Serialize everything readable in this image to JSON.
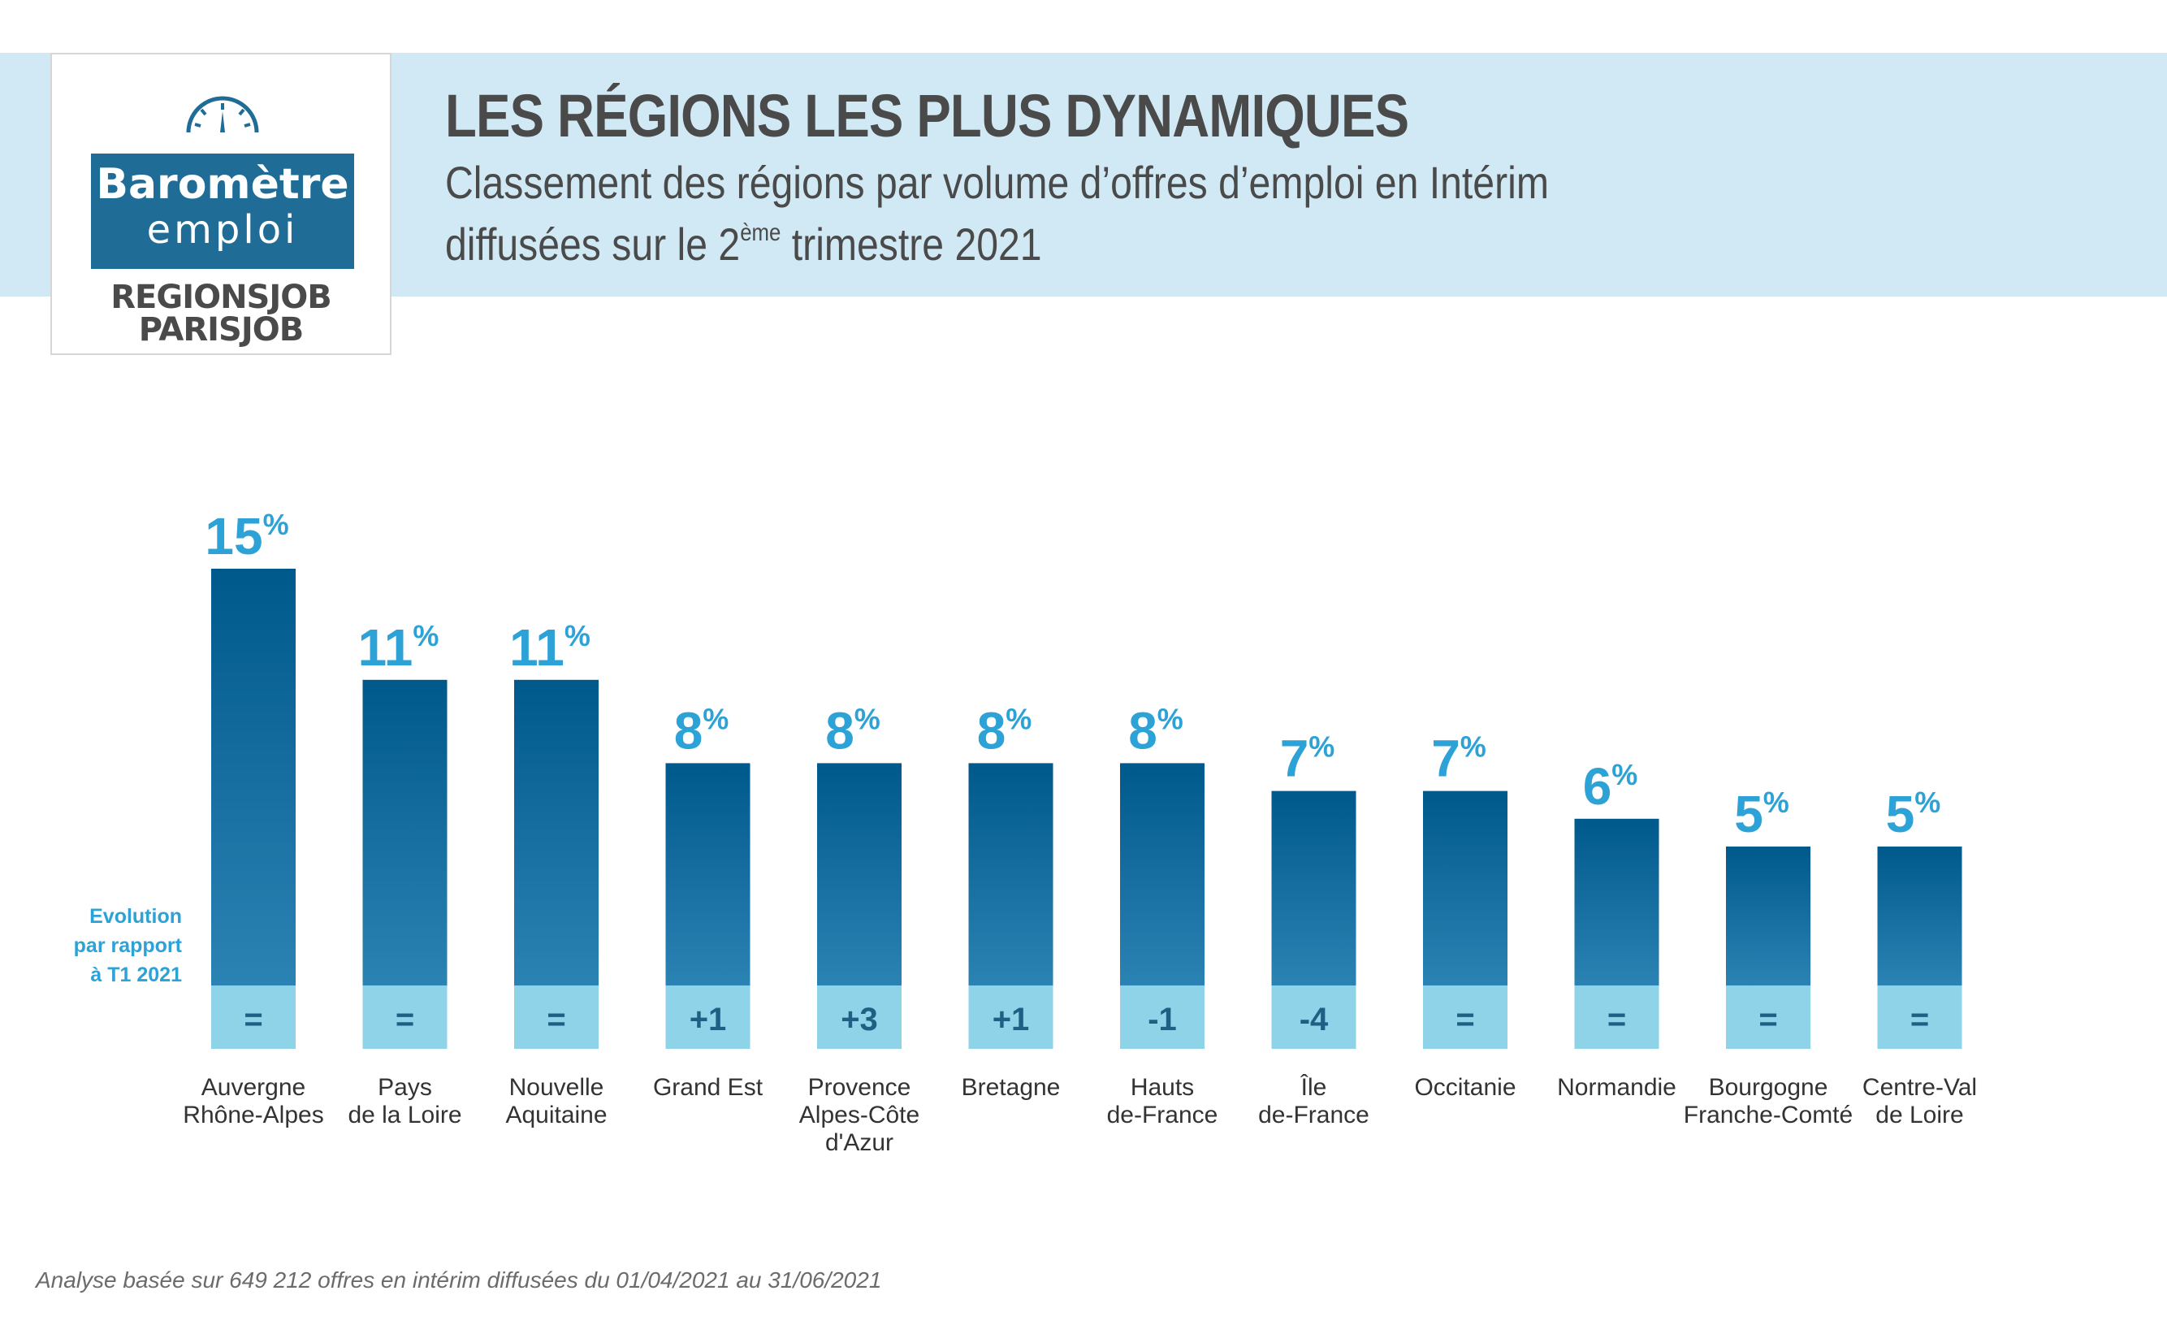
{
  "logo": {
    "line1": "Baromètre",
    "line2": "emploi",
    "brand1": "REGIONSJOB",
    "brand2": "PARISJOB"
  },
  "header": {
    "title": "LES RÉGIONS LES PLUS DYNAMIQUES",
    "subtitle_line1": "Classement des régions par volume d’offres d’emploi en Intérim",
    "subtitle_line2_pre": "diffusées sur le 2",
    "subtitle_line2_sup": "ème",
    "subtitle_line2_post": " trimestre 2021"
  },
  "evolution_label": [
    "Evolution",
    "par rapport",
    "à T1 2021"
  ],
  "footnote": "Analyse basée sur 649 212 offres en intérim diffusées du 01/04/2021 au 31/06/2021",
  "colors": {
    "bar_top": "#00598b",
    "bar_bottom": "#2b83b4",
    "evo_bg": "#8fd3e8",
    "label": "#2ca2d6",
    "banner": "#d1e9f4"
  },
  "chart_data": {
    "type": "bar",
    "title": "LES RÉGIONS LES PLUS DYNAMIQUES",
    "subtitle": "Classement des régions par volume d’offres d’emploi en Intérim diffusées sur le 2ème trimestre 2021",
    "xlabel": "",
    "ylabel": "",
    "unit": "%",
    "ylim": [
      0,
      15
    ],
    "grid": false,
    "legend": "none",
    "categories": [
      [
        "Auvergne",
        "Rhône-Alpes"
      ],
      [
        "Pays",
        "de la Loire"
      ],
      [
        "Nouvelle",
        "Aquitaine"
      ],
      [
        "Grand Est"
      ],
      [
        "Provence",
        "Alpes-Côte",
        "d'Azur"
      ],
      [
        "Bretagne"
      ],
      [
        "Hauts",
        "de-France"
      ],
      [
        "Île",
        "de-France"
      ],
      [
        "Occitanie"
      ],
      [
        "Normandie"
      ],
      [
        "Bourgogne",
        "Franche-Comté"
      ],
      [
        "Centre-Val",
        "de Loire"
      ]
    ],
    "values": [
      15,
      11,
      11,
      8,
      8,
      8,
      8,
      7,
      7,
      6,
      5,
      5
    ],
    "evolution": [
      "=",
      "=",
      "=",
      "+1",
      "+3",
      "+1",
      "-1",
      "-4",
      "=",
      "=",
      "=",
      "="
    ]
  }
}
